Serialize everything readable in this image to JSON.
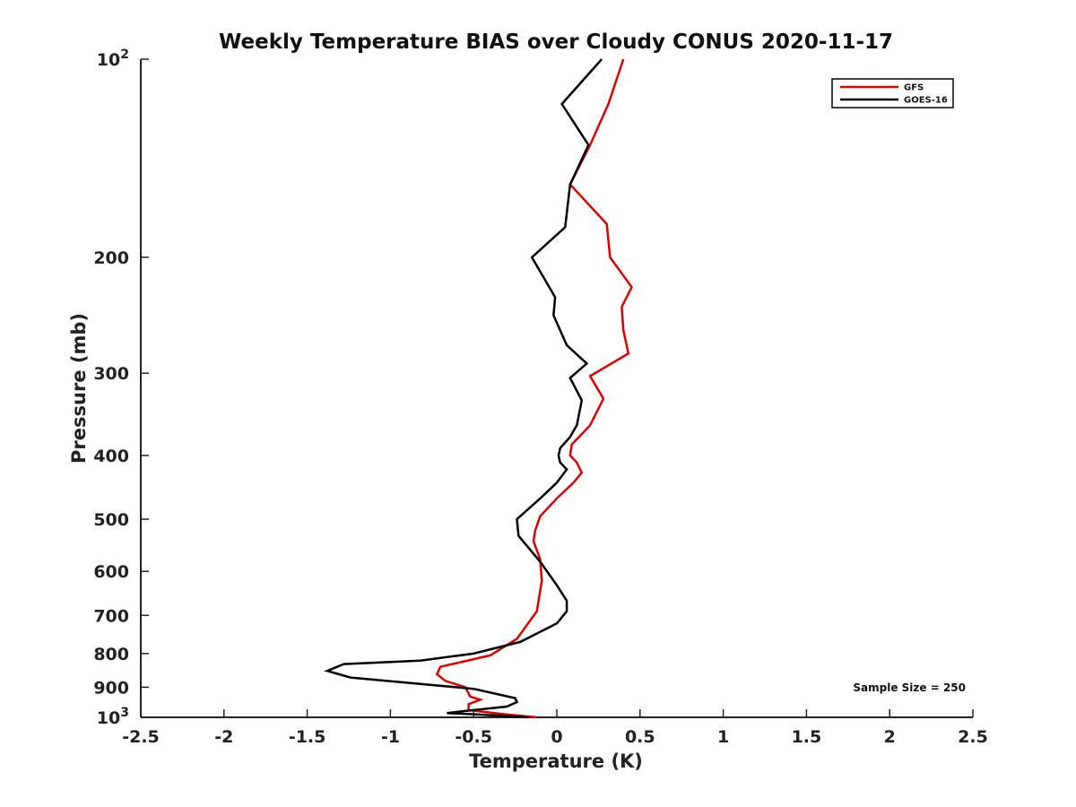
{
  "chart_data": {
    "type": "line",
    "title": "Weekly Temperature BIAS over Cloudy CONUS 2020-11-17",
    "xlabel": "Temperature (K)",
    "ylabel": "Pressure (mb)",
    "xlim": [
      -2.5,
      2.5
    ],
    "ylim": [
      1000,
      100
    ],
    "yscale": "log",
    "x_ticks": [
      -2.5,
      -2,
      -1.5,
      -1,
      -0.5,
      0,
      0.5,
      1,
      1.5,
      2,
      2.5
    ],
    "x_tick_labels": [
      "-2.5",
      "-2",
      "-1.5",
      "-1",
      "-0.5",
      "0",
      "0.5",
      "1",
      "1.5",
      "2",
      "2.5"
    ],
    "y_ticks": [
      200,
      300,
      400,
      500,
      600,
      700,
      800,
      900
    ],
    "y_tick_labels": [
      "200",
      "300",
      "400",
      "500",
      "600",
      "700",
      "800",
      "900"
    ],
    "y_power_ticks": [
      {
        "value": 100,
        "base": "10",
        "exp": "2"
      },
      {
        "value": 1000,
        "base": "10",
        "exp": "3"
      }
    ],
    "legend_position": "top-right",
    "annotation": "Sample Size = 250",
    "series": [
      {
        "name": "GFS",
        "color": "#e00000",
        "points": [
          [
            0.4,
            100
          ],
          [
            0.31,
            117
          ],
          [
            0.2,
            135
          ],
          [
            0.08,
            155
          ],
          [
            0.3,
            178
          ],
          [
            0.32,
            200
          ],
          [
            0.45,
            222
          ],
          [
            0.39,
            238
          ],
          [
            0.4,
            258
          ],
          [
            0.43,
            280
          ],
          [
            0.2,
            303
          ],
          [
            0.28,
            328
          ],
          [
            0.2,
            360
          ],
          [
            0.09,
            385
          ],
          [
            0.08,
            400
          ],
          [
            0.12,
            410
          ],
          [
            0.15,
            425
          ],
          [
            0.1,
            440
          ],
          [
            0.0,
            465
          ],
          [
            -0.1,
            495
          ],
          [
            -0.13,
            520
          ],
          [
            -0.14,
            540
          ],
          [
            -0.1,
            575
          ],
          [
            -0.09,
            620
          ],
          [
            -0.12,
            690
          ],
          [
            -0.24,
            760
          ],
          [
            -0.4,
            805
          ],
          [
            -0.7,
            838
          ],
          [
            -0.72,
            860
          ],
          [
            -0.67,
            880
          ],
          [
            -0.55,
            900
          ],
          [
            -0.52,
            930
          ],
          [
            -0.46,
            940
          ],
          [
            -0.53,
            955
          ],
          [
            -0.53,
            975
          ],
          [
            -0.33,
            988
          ],
          [
            -0.12,
            1000
          ]
        ]
      },
      {
        "name": "GOES-16",
        "color": "#000000",
        "points": [
          [
            0.27,
            100
          ],
          [
            0.03,
            117
          ],
          [
            0.19,
            135
          ],
          [
            0.08,
            155
          ],
          [
            0.05,
            180
          ],
          [
            -0.15,
            200
          ],
          [
            -0.01,
            230
          ],
          [
            -0.02,
            245
          ],
          [
            0.06,
            272
          ],
          [
            0.18,
            290
          ],
          [
            0.08,
            305
          ],
          [
            0.15,
            330
          ],
          [
            0.12,
            360
          ],
          [
            0.08,
            375
          ],
          [
            0.02,
            390
          ],
          [
            0.01,
            400
          ],
          [
            0.02,
            410
          ],
          [
            0.06,
            420
          ],
          [
            0.0,
            440
          ],
          [
            -0.1,
            465
          ],
          [
            -0.24,
            500
          ],
          [
            -0.23,
            530
          ],
          [
            -0.1,
            580
          ],
          [
            0.0,
            630
          ],
          [
            0.06,
            665
          ],
          [
            0.06,
            690
          ],
          [
            0.0,
            720
          ],
          [
            -0.22,
            768
          ],
          [
            -0.5,
            800
          ],
          [
            -0.82,
            820
          ],
          [
            -1.28,
            830
          ],
          [
            -1.38,
            850
          ],
          [
            -1.24,
            870
          ],
          [
            -0.5,
            905
          ],
          [
            -0.25,
            935
          ],
          [
            -0.24,
            948
          ],
          [
            -0.3,
            963
          ],
          [
            -0.55,
            978
          ],
          [
            -0.66,
            985
          ],
          [
            -0.48,
            990
          ],
          [
            -0.17,
            1000
          ]
        ]
      }
    ]
  }
}
